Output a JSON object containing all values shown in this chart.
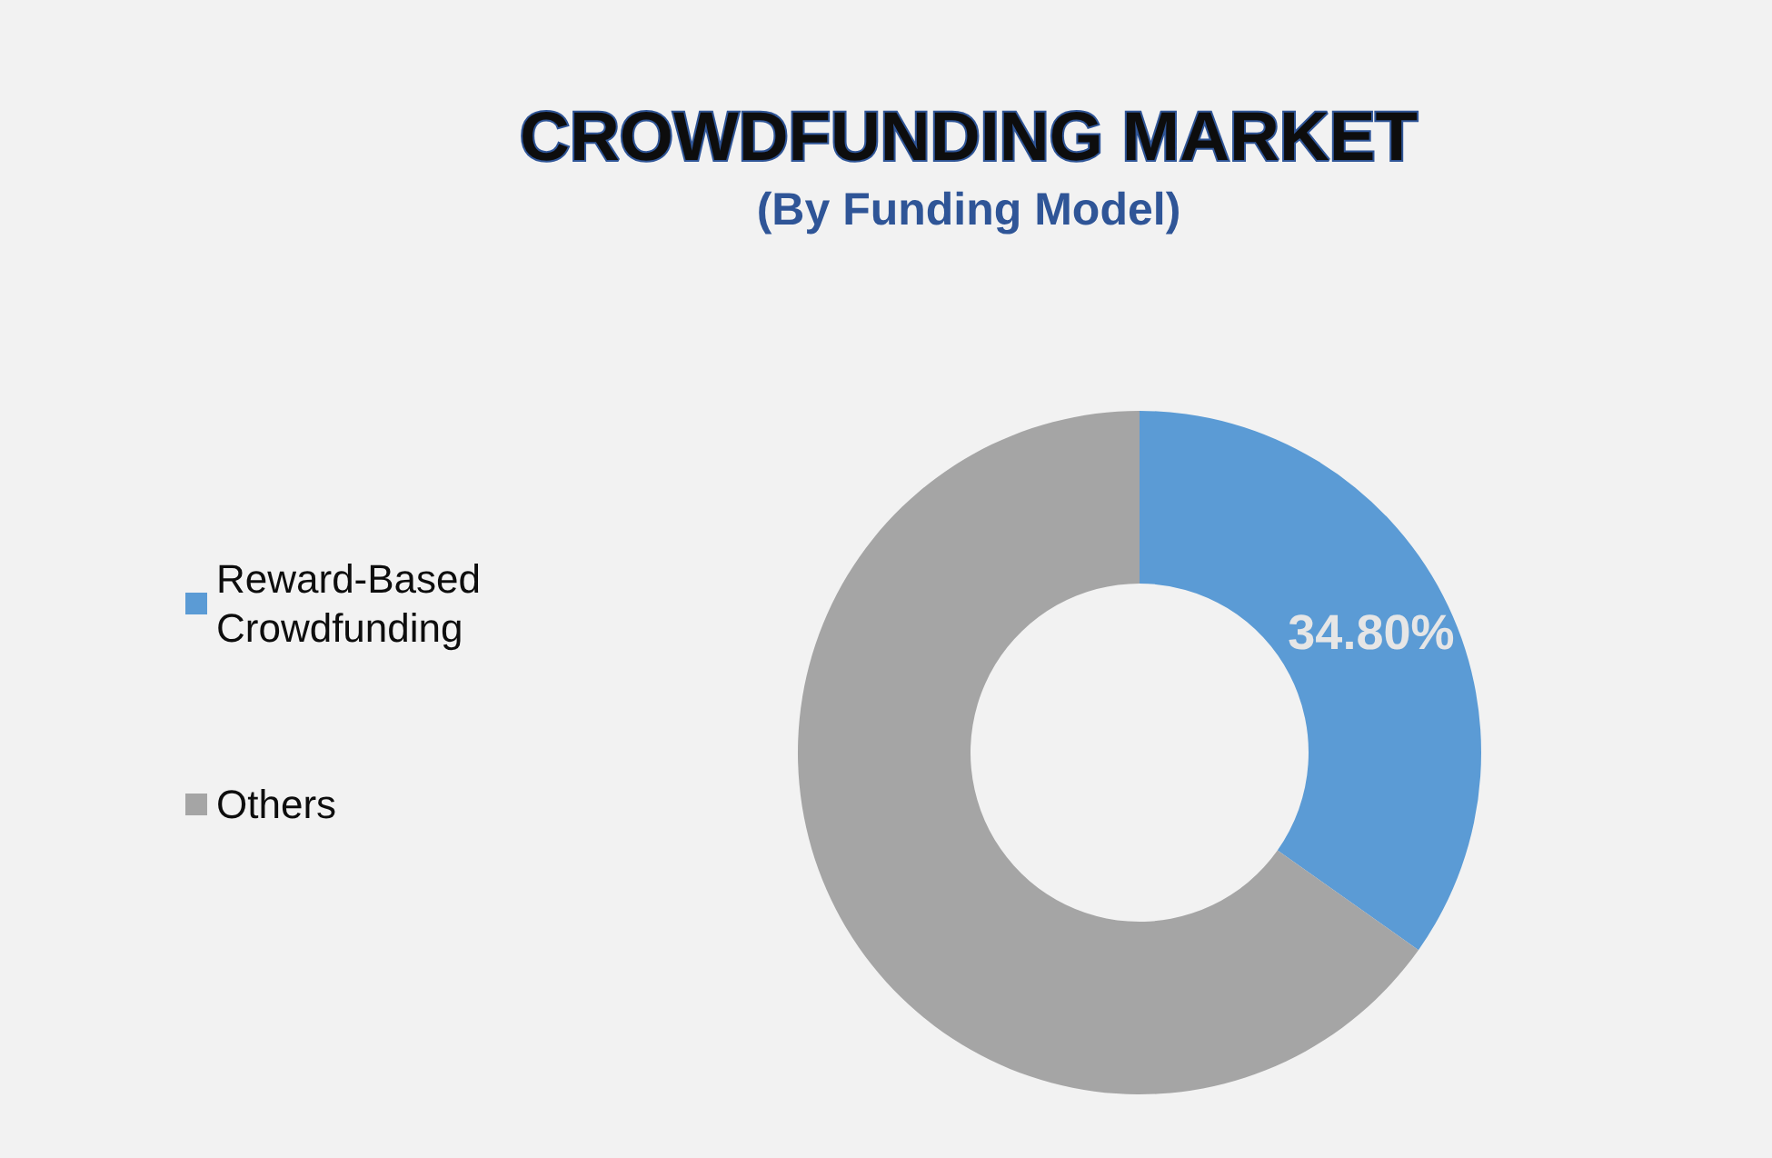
{
  "chart_data": {
    "type": "donut",
    "title": "CROWDFUNDING MARKET",
    "subtitle": "(By Funding Model)",
    "categories": [
      "Reward-Based Crowdfunding",
      "Others"
    ],
    "values": [
      34.8,
      65.2
    ],
    "colors": [
      "#5b9bd5",
      "#a5a5a5"
    ],
    "value_labels": [
      "34.80%",
      null
    ],
    "legend": "left"
  }
}
